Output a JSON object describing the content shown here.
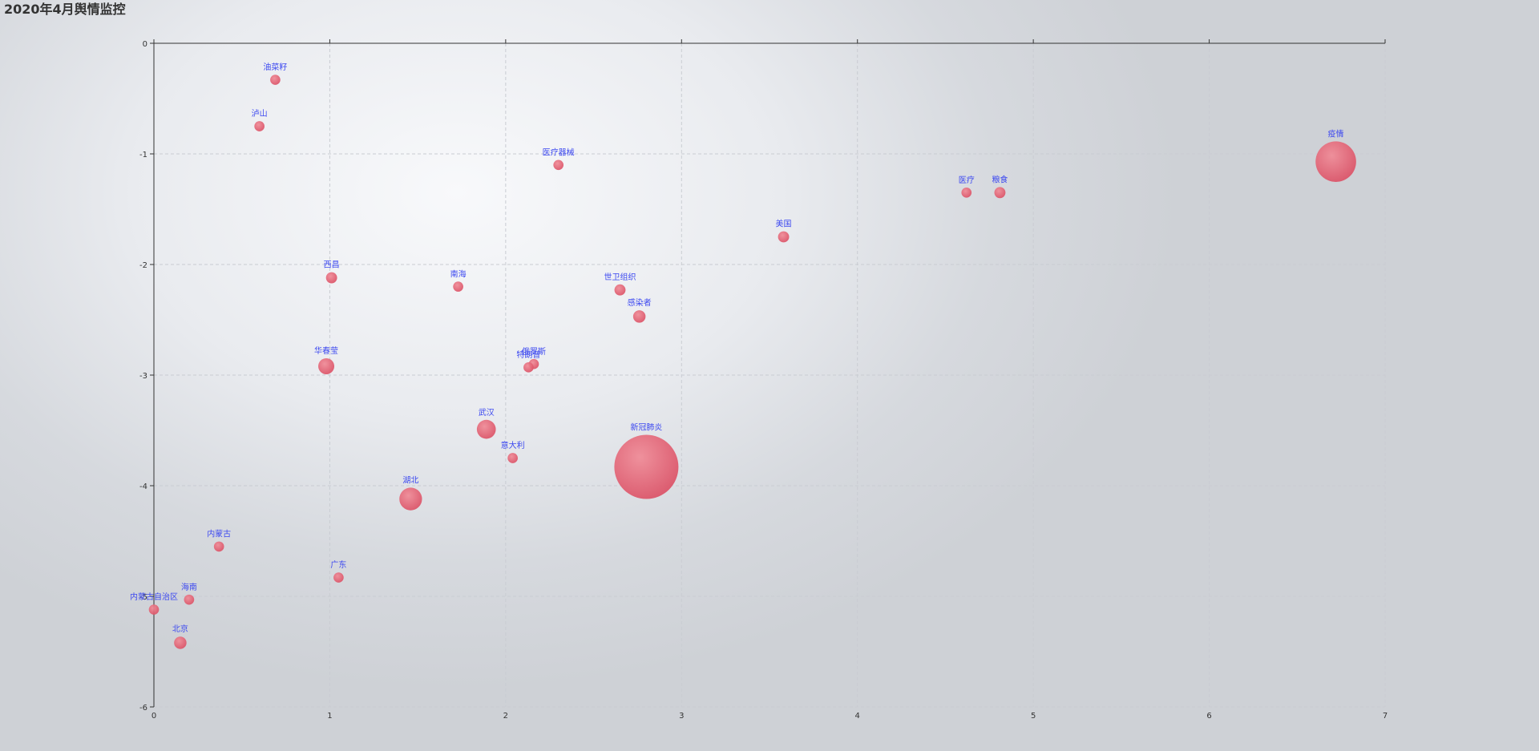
{
  "chart_data": {
    "type": "scatter",
    "title": "2020年4月舆情监控",
    "xlim": [
      0,
      7
    ],
    "ylim": [
      -6,
      0
    ],
    "x_ticks": [
      "0",
      "1",
      "2",
      "3",
      "4",
      "5",
      "6",
      "7"
    ],
    "y_ticks": [
      "0",
      "-1",
      "-2",
      "-3",
      "-4",
      "-5",
      "-6"
    ],
    "grid": true,
    "colors": {
      "bubble": "#e05a6e",
      "label": "#3c48f0",
      "axis": "#333333",
      "grid": "#c9ccd2"
    },
    "points": [
      {
        "name": "油菜籽",
        "x": 0.69,
        "y": -0.33,
        "size": 1
      },
      {
        "name": "泸山",
        "x": 0.6,
        "y": -0.75,
        "size": 1
      },
      {
        "name": "医疗器械",
        "x": 2.3,
        "y": -1.1,
        "size": 1
      },
      {
        "name": "疫情",
        "x": 6.72,
        "y": -1.07,
        "size": 16
      },
      {
        "name": "医疗",
        "x": 4.62,
        "y": -1.35,
        "size": 1
      },
      {
        "name": "粮食",
        "x": 4.81,
        "y": -1.35,
        "size": 1.2
      },
      {
        "name": "美国",
        "x": 3.58,
        "y": -1.75,
        "size": 1.2
      },
      {
        "name": "西昌",
        "x": 1.01,
        "y": -2.12,
        "size": 1.2
      },
      {
        "name": "南海",
        "x": 1.73,
        "y": -2.2,
        "size": 1
      },
      {
        "name": "世卫组织",
        "x": 2.65,
        "y": -2.23,
        "size": 1.2
      },
      {
        "name": "感染者",
        "x": 2.76,
        "y": -2.47,
        "size": 1.5
      },
      {
        "name": "华春莹",
        "x": 0.98,
        "y": -2.92,
        "size": 2.5
      },
      {
        "name": "俄罗斯",
        "x": 2.16,
        "y": -2.9,
        "size": 1
      },
      {
        "name": "特朗普",
        "x": 2.13,
        "y": -2.93,
        "size": 1
      },
      {
        "name": "武汉",
        "x": 1.89,
        "y": -3.49,
        "size": 3.5
      },
      {
        "name": "新冠肺炎",
        "x": 2.8,
        "y": -3.83,
        "size": 40
      },
      {
        "name": "意大利",
        "x": 2.04,
        "y": -3.75,
        "size": 1
      },
      {
        "name": "湖北",
        "x": 1.46,
        "y": -4.12,
        "size": 5
      },
      {
        "name": "内蒙古",
        "x": 0.37,
        "y": -4.55,
        "size": 1
      },
      {
        "name": "广东",
        "x": 1.05,
        "y": -4.83,
        "size": 1
      },
      {
        "name": "海南",
        "x": 0.2,
        "y": -5.03,
        "size": 1
      },
      {
        "name": "内蒙古自治区",
        "x": 0.0,
        "y": -5.12,
        "size": 1
      },
      {
        "name": "北京",
        "x": 0.15,
        "y": -5.42,
        "size": 1.5
      }
    ]
  }
}
